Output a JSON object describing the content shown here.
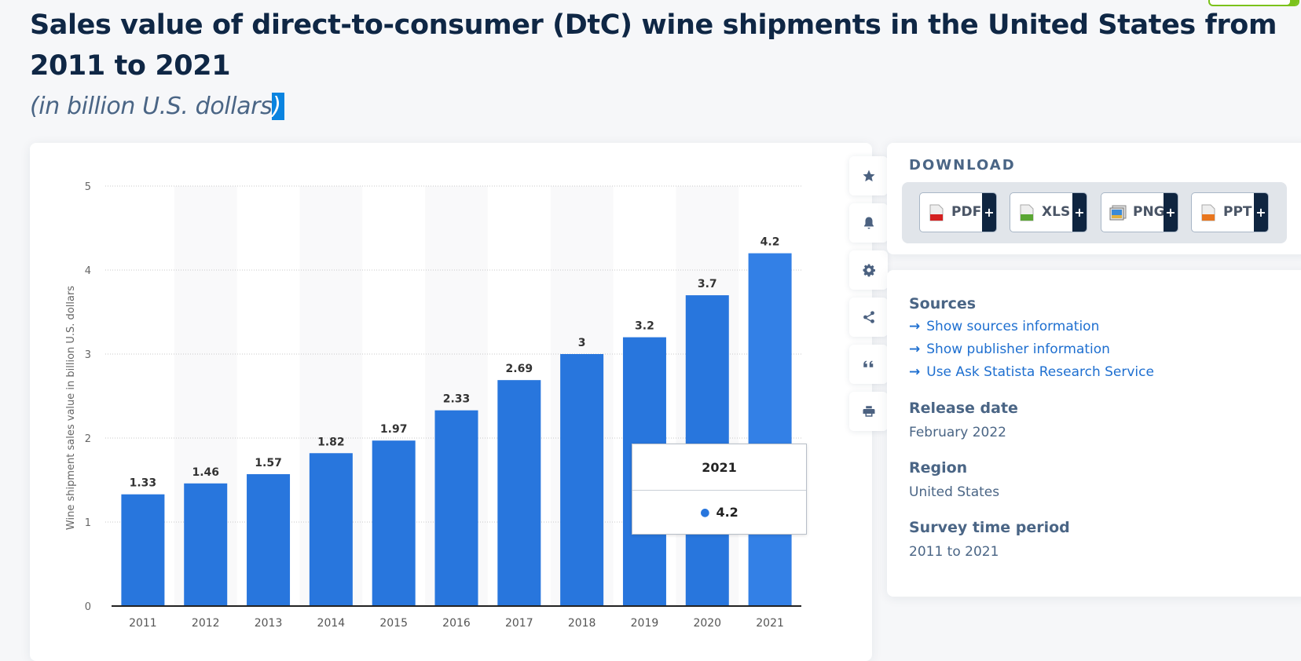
{
  "header": {
    "title": "Sales value of direct-to-consumer (DtC) wine shipments in the United States from 2011 to 2021",
    "subtitle_main": "(in billion U.S. dollars",
    "subtitle_selected": ")"
  },
  "toolbar": {
    "buttons": [
      {
        "name": "favorite",
        "icon": "star-icon"
      },
      {
        "name": "notification",
        "icon": "bell-icon"
      },
      {
        "name": "settings",
        "icon": "gear-icon"
      },
      {
        "name": "share",
        "icon": "share-icon"
      },
      {
        "name": "cite",
        "icon": "quote-icon"
      },
      {
        "name": "print",
        "icon": "printer-icon"
      }
    ]
  },
  "tooltip": {
    "category": "2021",
    "value": "4.2"
  },
  "download": {
    "title": "DOWNLOAD",
    "buttons": [
      {
        "label": "PDF",
        "plus": "+",
        "icon": "pdf-file-icon",
        "color": "#d42020"
      },
      {
        "label": "XLS",
        "plus": "+",
        "icon": "xls-file-icon",
        "color": "#5aa633"
      },
      {
        "label": "PNG",
        "plus": "+",
        "icon": "png-image-icon",
        "color": "#3a8ad8"
      },
      {
        "label": "PPT",
        "plus": "+",
        "icon": "ppt-file-icon",
        "color": "#e8761e"
      }
    ]
  },
  "info": {
    "sources_heading": "Sources",
    "links": [
      {
        "arrow": "→",
        "label": "Show sources information"
      },
      {
        "arrow": "→",
        "label": "Show publisher information"
      },
      {
        "arrow": "→",
        "label": "Use Ask Statista Research Service"
      }
    ],
    "release_heading": "Release date",
    "release_value": "February 2022",
    "region_heading": "Region",
    "region_value": "United States",
    "period_heading": "Survey time period",
    "period_value": "2011 to 2021"
  },
  "colors": {
    "bar": "#2876dd",
    "bar_hover": "#3380e6",
    "band": "#f9f9fa",
    "grid": "#c8c8c8",
    "axis": "#222222",
    "accent_link": "#1e6fd0"
  },
  "chart_data": {
    "type": "bar",
    "title": "Sales value of direct-to-consumer (DtC) wine shipments in the United States from 2011 to 2021",
    "subtitle": "(in billion U.S. dollars)",
    "xlabel": "",
    "ylabel": "Wine shipment sales value in billion U.S. dollars",
    "categories": [
      "2011",
      "2012",
      "2013",
      "2014",
      "2015",
      "2016",
      "2017",
      "2018",
      "2019",
      "2020",
      "2021"
    ],
    "values": [
      1.33,
      1.46,
      1.57,
      1.82,
      1.97,
      2.33,
      2.69,
      3,
      3.2,
      3.7,
      4.2
    ],
    "value_labels": [
      "1.33",
      "1.46",
      "1.57",
      "1.82",
      "1.97",
      "2.33",
      "2.69",
      "3",
      "3.2",
      "3.7",
      "4.2"
    ],
    "ylim": [
      0,
      5
    ],
    "yticks": [
      0,
      1,
      2,
      3,
      4,
      5
    ],
    "grid": true,
    "legend": "none",
    "highlighted_category": "2021"
  }
}
